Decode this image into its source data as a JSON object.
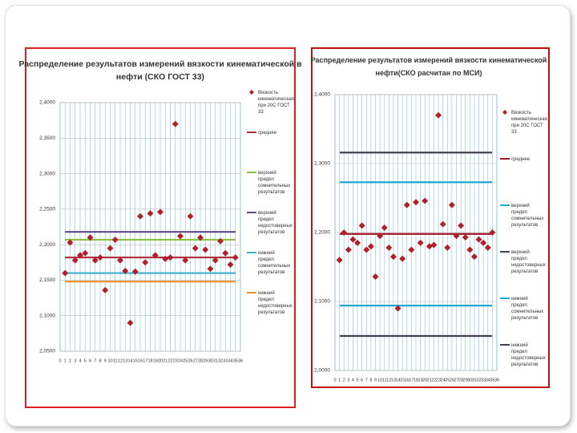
{
  "chart_data": [
    {
      "type": "scatter",
      "title": "Распределение результатов измерений вязкости кинематической в нефти (СКО ГОСТ 33)",
      "x": [
        1,
        2,
        3,
        4,
        5,
        6,
        7,
        8,
        9,
        10,
        11,
        12,
        13,
        14,
        15,
        16,
        17,
        18,
        19,
        20,
        21,
        22,
        23,
        24,
        25,
        26,
        27,
        28,
        29,
        30,
        31,
        32,
        33,
        34,
        35
      ],
      "series": [
        {
          "name": "Вязкость кинематическая при 20С ГОСТ 33",
          "color": "#b0202a",
          "values": [
            2.16,
            2.203,
            2.178,
            2.185,
            2.188,
            2.21,
            2.178,
            2.182,
            2.136,
            2.195,
            2.207,
            2.178,
            2.163,
            2.09,
            2.162,
            2.24,
            2.175,
            2.244,
            2.185,
            2.246,
            2.18,
            2.182,
            2.37,
            2.212,
            2.178,
            2.24,
            2.195,
            2.21,
            2.193,
            2.166,
            2.178,
            2.205,
            2.188,
            2.172,
            2.182
          ]
        }
      ],
      "reference_lines": [
        {
          "name": "среднее",
          "color": "#b0303a",
          "value": 2.182
        },
        {
          "name": "верхний предел сомнительных результатов",
          "color": "#8fbf3f",
          "value": 2.207
        },
        {
          "name": "верхний предел недостоверных результатов",
          "color": "#5e4a8a",
          "value": 2.218
        },
        {
          "name": "нижний предел сомнительных результатов",
          "color": "#3fb0d0",
          "value": 2.16
        },
        {
          "name": "нижний предел недостоверных результатов",
          "color": "#f0902a",
          "value": 2.148
        }
      ],
      "xlim": [
        0,
        36
      ],
      "xticks": [
        0,
        1,
        2,
        3,
        4,
        5,
        6,
        7,
        8,
        9,
        10,
        11,
        12,
        13,
        14,
        15,
        16,
        17,
        18,
        19,
        20,
        21,
        22,
        23,
        24,
        25,
        26,
        27,
        28,
        29,
        30,
        31,
        32,
        33,
        34,
        35,
        36
      ],
      "ylim": [
        2.05,
        2.4
      ],
      "yticks": [
        {
          "value": 2.05,
          "label": "2,0500"
        },
        {
          "value": 2.1,
          "label": "2,1000"
        },
        {
          "value": 2.15,
          "label": "2,1500"
        },
        {
          "value": 2.2,
          "label": "2,2000"
        },
        {
          "value": 2.25,
          "label": "2,2500"
        },
        {
          "value": 2.3,
          "label": "2,3000"
        },
        {
          "value": 2.35,
          "label": "2,3500"
        },
        {
          "value": 2.4,
          "label": "2,4000"
        }
      ],
      "grid": true
    },
    {
      "type": "scatter",
      "title": "Распределение результатов измерений вязкости кинематической нефти(СКО расчитан по МСИ)",
      "x": [
        1,
        2,
        3,
        4,
        5,
        6,
        7,
        8,
        9,
        10,
        11,
        12,
        13,
        14,
        15,
        16,
        17,
        18,
        19,
        20,
        21,
        22,
        23,
        24,
        25,
        26,
        27,
        28,
        29,
        30,
        31,
        32,
        33,
        34,
        35
      ],
      "series": [
        {
          "name": "Вязкость кинематическая при 20С ГОСТ 33",
          "color": "#b0202a",
          "values": [
            2.16,
            2.2,
            2.175,
            2.19,
            2.185,
            2.21,
            2.175,
            2.18,
            2.136,
            2.195,
            2.207,
            2.178,
            2.165,
            2.09,
            2.162,
            2.24,
            2.175,
            2.244,
            2.185,
            2.246,
            2.18,
            2.182,
            2.37,
            2.212,
            2.178,
            2.24,
            2.195,
            2.21,
            2.193,
            2.175,
            2.165,
            2.19,
            2.185,
            2.178,
            2.2
          ]
        }
      ],
      "reference_lines": [
        {
          "name": "среднее",
          "color": "#a01828",
          "value": 2.198
        },
        {
          "name": "верхний предел сомнительных результатов",
          "color": "#20a8d0",
          "value": 2.273
        },
        {
          "name": "верхний предел недостоверных результатов",
          "color": "#404050",
          "value": 2.316
        },
        {
          "name": "нижний предел сомнительных результатов",
          "color": "#20a8d0",
          "value": 2.094
        },
        {
          "name": "нижний предел недостоверных результатов",
          "color": "#404050",
          "value": 2.05
        }
      ],
      "xlim": [
        0,
        36
      ],
      "xticks": [
        0,
        1,
        2,
        3,
        4,
        5,
        6,
        7,
        8,
        9,
        10,
        11,
        12,
        13,
        14,
        15,
        16,
        17,
        18,
        19,
        20,
        21,
        22,
        23,
        24,
        25,
        26,
        27,
        28,
        29,
        30,
        31,
        32,
        33,
        34,
        35,
        36
      ],
      "ylim": [
        2.0,
        2.4
      ],
      "yticks": [
        {
          "value": 2.0,
          "label": "2,0000"
        },
        {
          "value": 2.1,
          "label": "2,1000"
        },
        {
          "value": 2.2,
          "label": "2,2000"
        },
        {
          "value": 2.3,
          "label": "2,3000"
        },
        {
          "value": 2.4,
          "label": "2,4000"
        }
      ],
      "grid": true
    }
  ]
}
